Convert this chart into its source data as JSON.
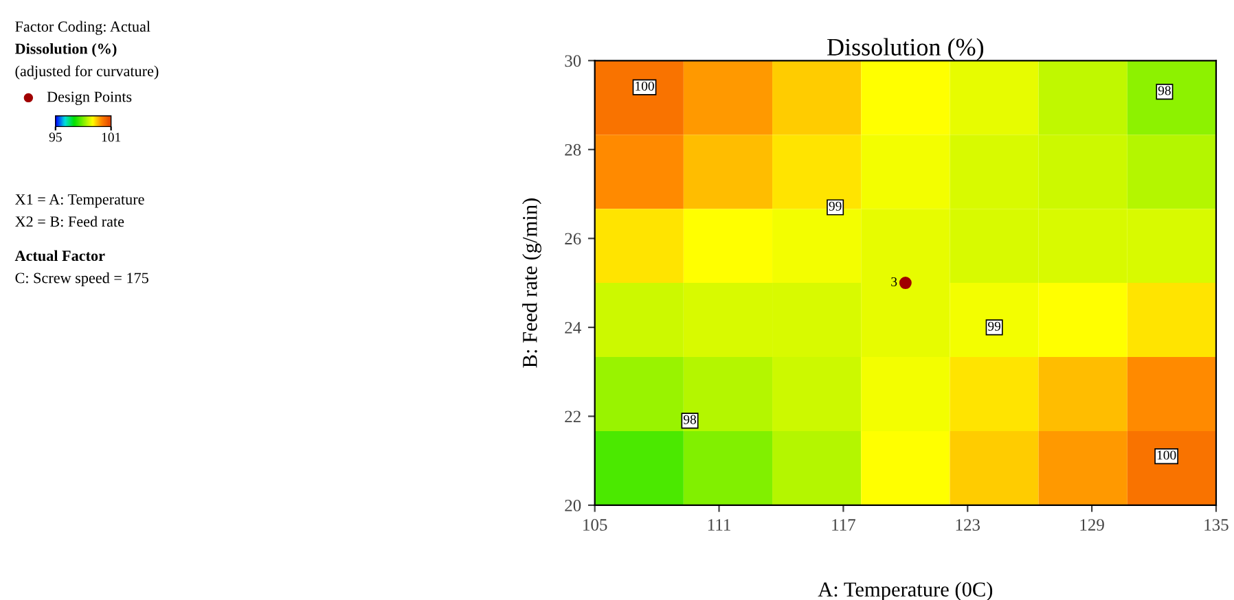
{
  "chart_data": {
    "type": "heatmap",
    "title": "Dissolution (%)",
    "xlabel": "A: Temperature (0C)",
    "ylabel": "B: Feed rate (g/min)",
    "xlim": [
      105,
      135
    ],
    "xticks": [
      105,
      111,
      117,
      123,
      129,
      135
    ],
    "ylim": [
      20,
      30
    ],
    "yticks": [
      20,
      22,
      24,
      26,
      28,
      30
    ],
    "clim": [
      95,
      101
    ],
    "cticks": [
      95,
      101
    ],
    "cells": [
      [
        100.2,
        99.8,
        99.4,
        99.0,
        98.8,
        98.5,
        98.1
      ],
      [
        99.9,
        99.5,
        99.2,
        98.9,
        98.7,
        98.6,
        98.4
      ],
      [
        99.2,
        99.0,
        98.9,
        98.8,
        98.7,
        98.7,
        98.7
      ],
      [
        98.6,
        98.7,
        98.7,
        98.8,
        98.9,
        99.0,
        99.2
      ],
      [
        98.2,
        98.4,
        98.6,
        98.9,
        99.2,
        99.5,
        99.9
      ],
      [
        97.6,
        98.0,
        98.4,
        99.0,
        99.4,
        99.8,
        100.2
      ]
    ],
    "series": [
      {
        "type": "scatter",
        "name": "Design Points",
        "color": "#a00000",
        "x": [
          120
        ],
        "values": [
          25
        ]
      }
    ],
    "legend": "left",
    "annotations": [
      "Factor Coding: Actual",
      "Dissolution (%)",
      "(adjusted for curvature)",
      "X1 = A: Temperature",
      "X2 = B: Feed rate",
      "Actual Factor",
      "C: Screw speed = 175",
      "100",
      "98",
      "99",
      "99",
      "98",
      "100",
      "3"
    ]
  }
}
